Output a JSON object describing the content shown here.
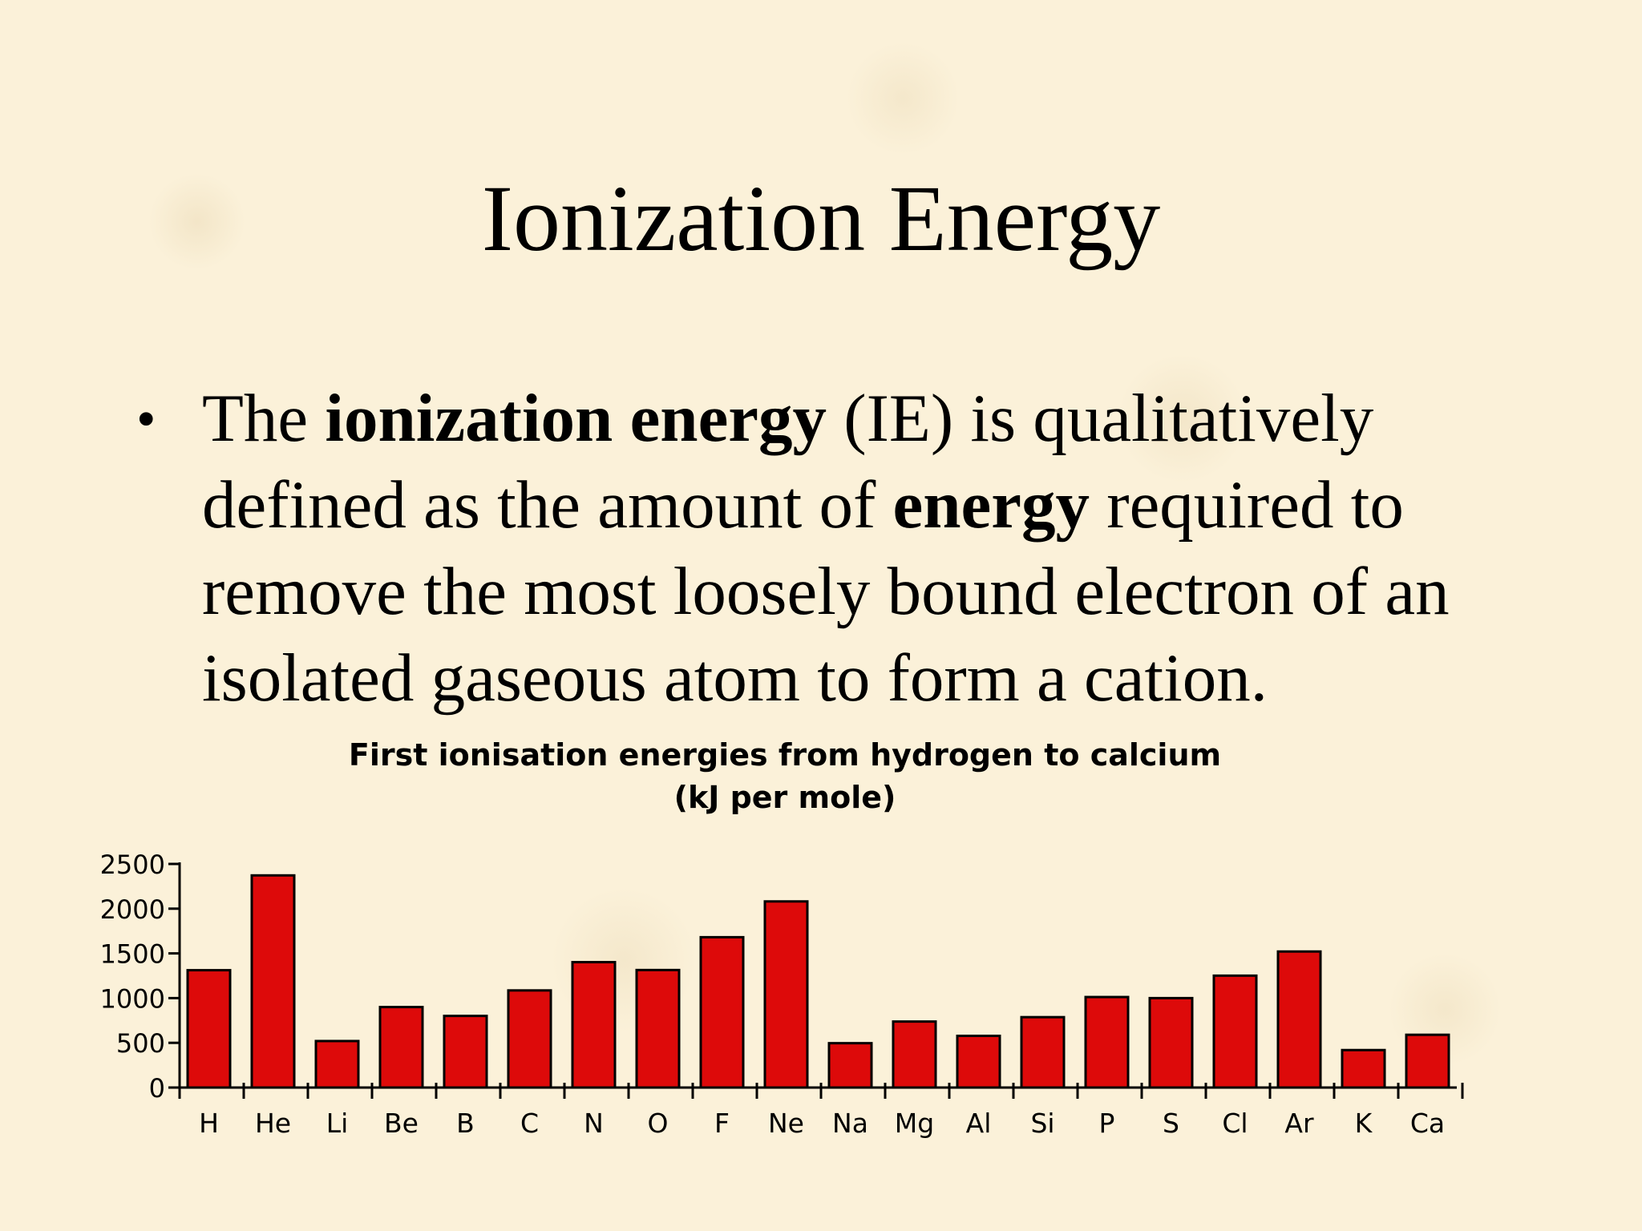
{
  "slide": {
    "title": "Ionization Energy",
    "bullet": {
      "t1": "The ",
      "b1": "ionization energy",
      "t2": " (IE) is qualitatively defined as the amount of ",
      "b2": "energy",
      "t3": " required to remove the most loosely bound electron of an isolated gaseous atom to form a cation."
    }
  },
  "colors": {
    "bar_fill": "#dd0a0a",
    "bar_stroke": "#000000",
    "background": "#fbf1d9"
  },
  "chart_data": {
    "type": "bar",
    "title": "First ionisation energies from hydrogen to calcium",
    "subtitle": "(kJ per mole)",
    "xlabel": "",
    "ylabel": "",
    "ylim": [
      0,
      2500
    ],
    "yticks": [
      0,
      500,
      1000,
      1500,
      2000,
      2500
    ],
    "grid": false,
    "categories": [
      "H",
      "He",
      "Li",
      "Be",
      "B",
      "C",
      "N",
      "O",
      "F",
      "Ne",
      "Na",
      "Mg",
      "Al",
      "Si",
      "P",
      "S",
      "Cl",
      "Ar",
      "K",
      "Ca"
    ],
    "values": [
      1312,
      2372,
      520,
      900,
      801,
      1086,
      1402,
      1314,
      1681,
      2081,
      496,
      738,
      578,
      787,
      1012,
      1000,
      1251,
      1521,
      419,
      590
    ]
  }
}
